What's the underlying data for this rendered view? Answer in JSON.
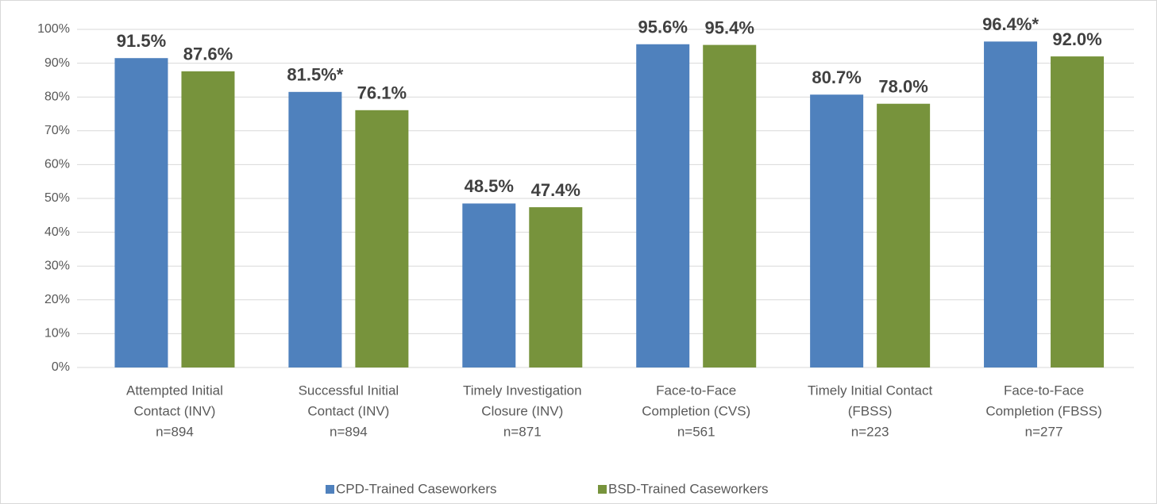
{
  "chart_data": {
    "type": "bar",
    "categories": [
      [
        "Attempted Initial",
        "Contact (INV)",
        "n=894"
      ],
      [
        "Successful Initial",
        "Contact (INV)",
        "n=894"
      ],
      [
        "Timely Investigation",
        "Closure (INV)",
        "n=871"
      ],
      [
        "Face-to-Face",
        "Completion (CVS)",
        "n=561"
      ],
      [
        "Timely Initial Contact",
        "(FBSS)",
        "n=223"
      ],
      [
        "Face-to-Face",
        "Completion (FBSS)",
        "n=277"
      ]
    ],
    "series": [
      {
        "name": "CPD-Trained Caseworkers",
        "color": "#4f81bd",
        "values": [
          91.5,
          81.5,
          48.5,
          95.6,
          80.7,
          96.4
        ],
        "value_labels": [
          "91.5%",
          "81.5%*",
          "48.5%",
          "95.6%",
          "80.7%",
          "96.4%*"
        ]
      },
      {
        "name": "BSD-Trained Caseworkers",
        "color": "#77933c",
        "values": [
          87.6,
          76.1,
          47.4,
          95.4,
          78.0,
          92.0
        ],
        "value_labels": [
          "87.6%",
          "76.1%",
          "47.4%",
          "95.4%",
          "78.0%",
          "92.0%"
        ]
      }
    ],
    "ylim": [
      0,
      100
    ],
    "yticks": [
      {
        "value": 0,
        "label": "0%"
      },
      {
        "value": 10,
        "label": "10%"
      },
      {
        "value": 20,
        "label": "20%"
      },
      {
        "value": 30,
        "label": "30%"
      },
      {
        "value": 40,
        "label": "40%"
      },
      {
        "value": 50,
        "label": "50%"
      },
      {
        "value": 60,
        "label": "60%"
      },
      {
        "value": 70,
        "label": "70%"
      },
      {
        "value": 80,
        "label": "80%"
      },
      {
        "value": 90,
        "label": "90%"
      },
      {
        "value": 100,
        "label": "100%"
      }
    ],
    "grid": true,
    "legend": "bottom"
  }
}
